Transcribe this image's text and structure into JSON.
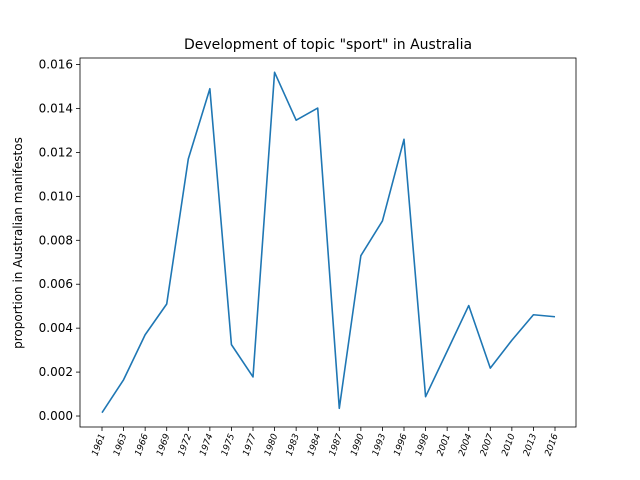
{
  "chart_data": {
    "type": "line",
    "title": "Development of topic \"sport\" in Australia",
    "xlabel": "",
    "ylabel": "proportion in Australian manifestos",
    "categories": [
      "1961",
      "1963",
      "1966",
      "1969",
      "1972",
      "1974",
      "1975",
      "1977",
      "1980",
      "1983",
      "1984",
      "1987",
      "1990",
      "1993",
      "1996",
      "1998",
      "2001",
      "2004",
      "2007",
      "2010",
      "2013",
      "2016"
    ],
    "series": [
      {
        "values": [
          0.00015,
          0.00165,
          0.0037,
          0.0051,
          0.0117,
          0.0149,
          0.00325,
          0.00178,
          0.01565,
          0.01347,
          0.01402,
          0.00035,
          0.0073,
          0.00888,
          0.0126,
          0.00088,
          0.00295,
          0.00503,
          0.00218,
          0.00345,
          0.00461,
          0.00452
        ],
        "color": "#1f77b4"
      }
    ],
    "ylim": [
      -0.0005,
      0.0163
    ],
    "yticks": [
      "0.000",
      "0.002",
      "0.004",
      "0.006",
      "0.008",
      "0.010",
      "0.012",
      "0.014",
      "0.016"
    ],
    "grid": false,
    "legend": "none"
  }
}
